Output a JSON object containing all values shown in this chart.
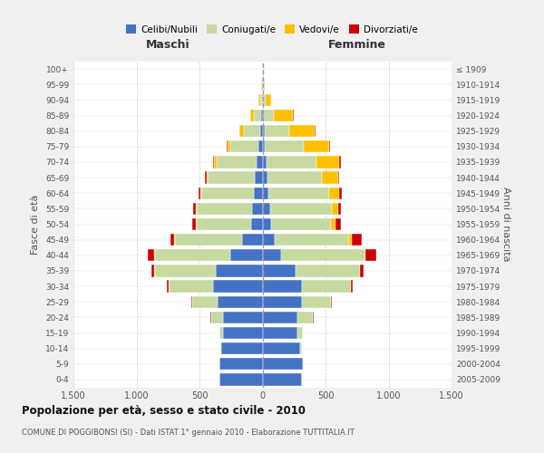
{
  "age_groups": [
    "0-4",
    "5-9",
    "10-14",
    "15-19",
    "20-24",
    "25-29",
    "30-34",
    "35-39",
    "40-44",
    "45-49",
    "50-54",
    "55-59",
    "60-64",
    "65-69",
    "70-74",
    "75-79",
    "80-84",
    "85-89",
    "90-94",
    "95-99",
    "100+"
  ],
  "birth_years": [
    "2005-2009",
    "2000-2004",
    "1995-1999",
    "1990-1994",
    "1985-1989",
    "1980-1984",
    "1975-1979",
    "1970-1974",
    "1965-1969",
    "1960-1964",
    "1955-1959",
    "1950-1954",
    "1945-1949",
    "1940-1944",
    "1935-1939",
    "1930-1934",
    "1925-1929",
    "1920-1924",
    "1915-1919",
    "1910-1914",
    "≤ 1909"
  ],
  "maschi": {
    "celibi": [
      340,
      340,
      325,
      315,
      310,
      355,
      390,
      370,
      255,
      165,
      90,
      80,
      70,
      60,
      50,
      30,
      20,
      10,
      5,
      3,
      2
    ],
    "coniugati": [
      3,
      5,
      10,
      30,
      100,
      200,
      355,
      485,
      600,
      530,
      435,
      445,
      415,
      375,
      315,
      225,
      130,
      60,
      15,
      5,
      2
    ],
    "vedovi": [
      0,
      0,
      0,
      0,
      0,
      2,
      2,
      3,
      5,
      5,
      5,
      5,
      10,
      10,
      20,
      25,
      30,
      30,
      10,
      3,
      1
    ],
    "divorziati": [
      0,
      0,
      0,
      0,
      5,
      5,
      10,
      25,
      50,
      30,
      30,
      20,
      15,
      10,
      10,
      5,
      0,
      0,
      0,
      0,
      0
    ]
  },
  "femmine": {
    "nubili": [
      310,
      320,
      300,
      280,
      280,
      310,
      310,
      260,
      150,
      100,
      70,
      60,
      50,
      40,
      30,
      20,
      15,
      10,
      5,
      3,
      2
    ],
    "coniugate": [
      3,
      5,
      15,
      40,
      120,
      230,
      390,
      510,
      660,
      590,
      470,
      490,
      480,
      430,
      400,
      310,
      200,
      80,
      20,
      5,
      2
    ],
    "vedove": [
      0,
      0,
      0,
      0,
      1,
      2,
      3,
      5,
      10,
      20,
      40,
      50,
      80,
      130,
      180,
      200,
      200,
      150,
      40,
      10,
      2
    ],
    "divorziate": [
      0,
      0,
      0,
      0,
      2,
      5,
      10,
      30,
      80,
      80,
      40,
      20,
      20,
      10,
      10,
      5,
      5,
      5,
      2,
      0,
      0
    ]
  },
  "colors": {
    "celibi_nubili": "#4472c4",
    "coniugati": "#c5d9a0",
    "vedovi": "#ffc000",
    "divorziati": "#cc0000"
  },
  "xlim": 1500,
  "title": "Popolazione per età, sesso e stato civile - 2010",
  "subtitle": "COMUNE DI POGGIBONSI (SI) - Dati ISTAT 1° gennaio 2010 - Elaborazione TUTTITALIA.IT",
  "ylabel_left": "Fasce di età",
  "ylabel_right": "Anni di nascita",
  "xlabel_left": "Maschi",
  "xlabel_right": "Femmine",
  "bg_color": "#f0f0f0",
  "plot_bg_color": "#ffffff",
  "grid_color": "#cccccc"
}
